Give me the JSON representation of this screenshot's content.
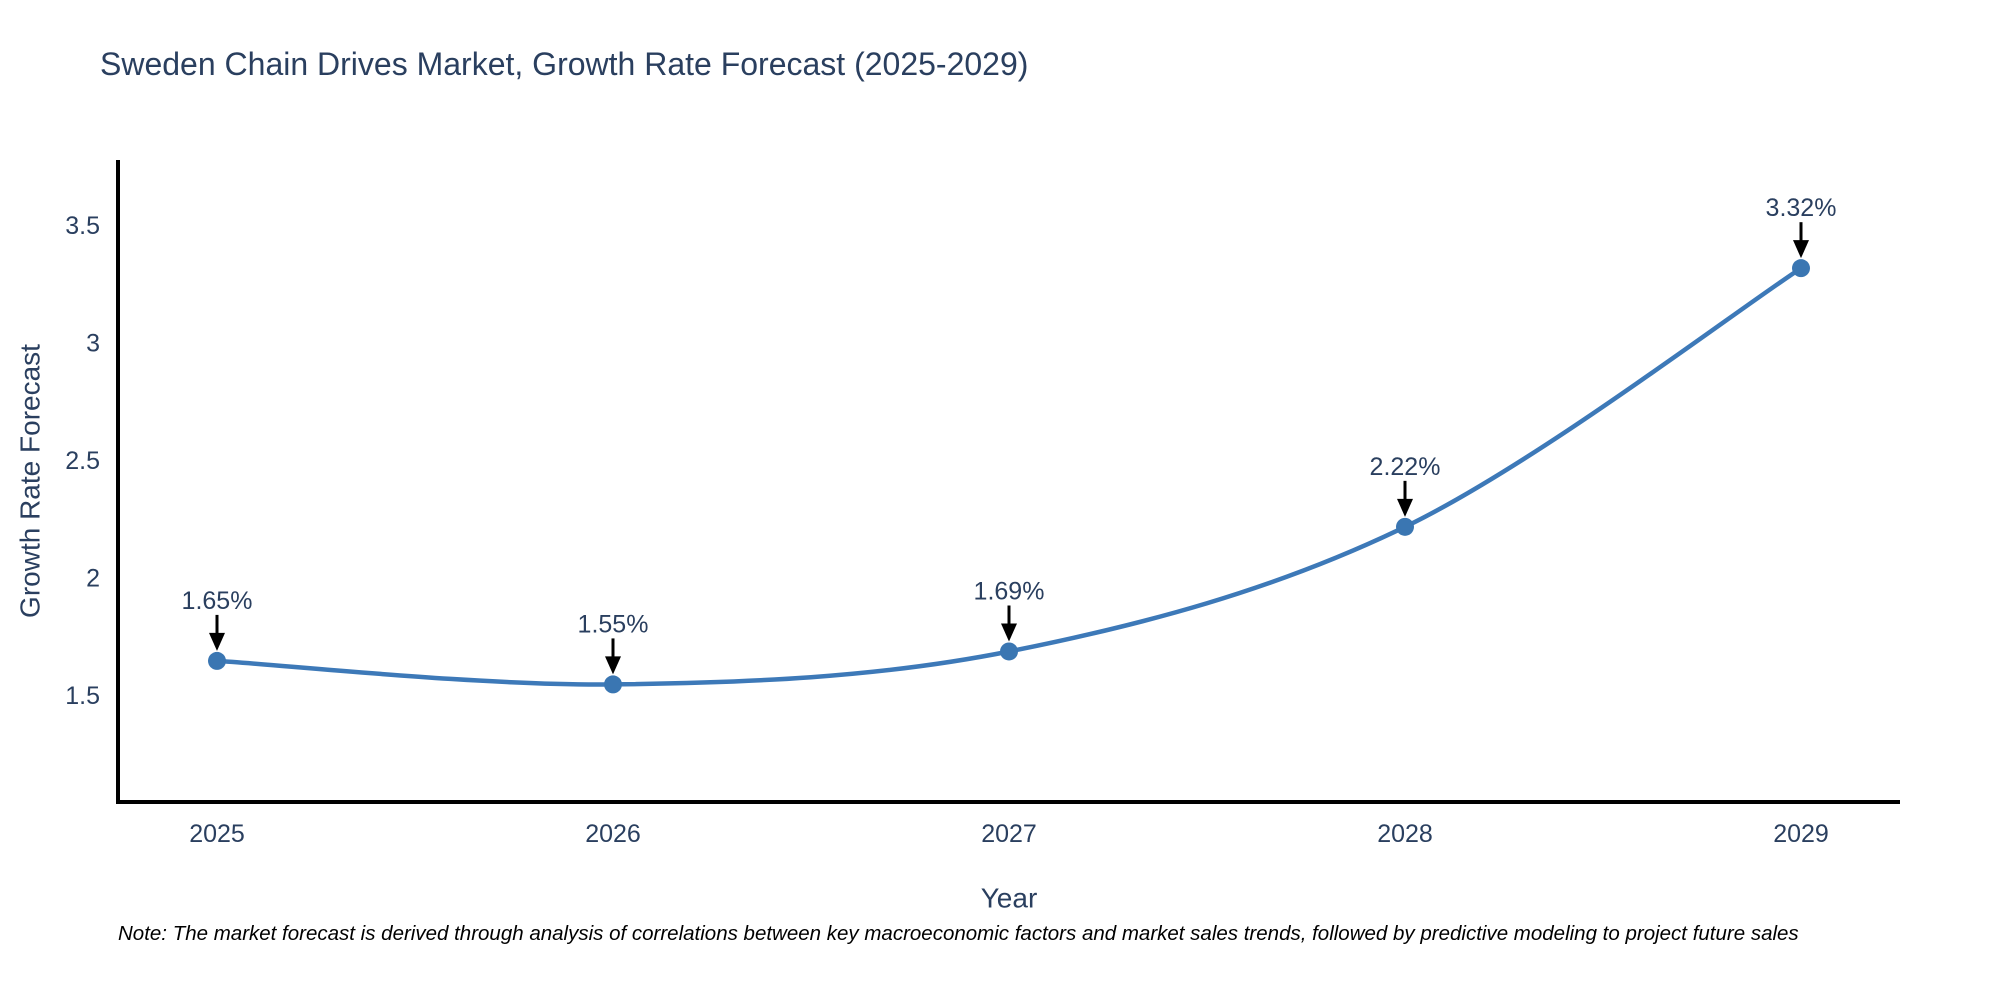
{
  "title": "Sweden Chain Drives Market, Growth Rate Forecast (2025-2029)",
  "note": "Note: The market forecast is derived through analysis of correlations between key macroeconomic factors and market sales trends, followed by predictive modeling to project future sales",
  "chart_data": {
    "type": "line",
    "title": "Sweden Chain Drives Market, Growth Rate Forecast (2025-2029)",
    "x": [
      2025,
      2026,
      2027,
      2028,
      2029
    ],
    "values": [
      1.65,
      1.55,
      1.69,
      2.22,
      3.32
    ],
    "point_labels": [
      "1.65%",
      "1.55%",
      "1.69%",
      "2.22%",
      "3.32%"
    ],
    "xlabel": "Year",
    "ylabel": "Growth Rate Forecast",
    "x_tick_labels": [
      "2025",
      "2026",
      "2027",
      "2028",
      "2029"
    ],
    "y_ticks": [
      1.5,
      2,
      2.5,
      3,
      3.5
    ],
    "y_tick_labels": [
      "1.5",
      "2",
      "2.5",
      "3",
      "3.5"
    ],
    "xlim": [
      2024.75,
      2029.25
    ],
    "ylim": [
      1.05,
      3.78
    ],
    "grid": false,
    "legend": "none",
    "line_shape": "spline",
    "colors": {
      "line": "#3d79b8",
      "marker": "#3a76b2",
      "axis": "#000000",
      "text": "#2a3f5f",
      "annotation_text": "#2a3f5f",
      "annotation_arrow": "#000000",
      "background": "#ffffff"
    }
  }
}
